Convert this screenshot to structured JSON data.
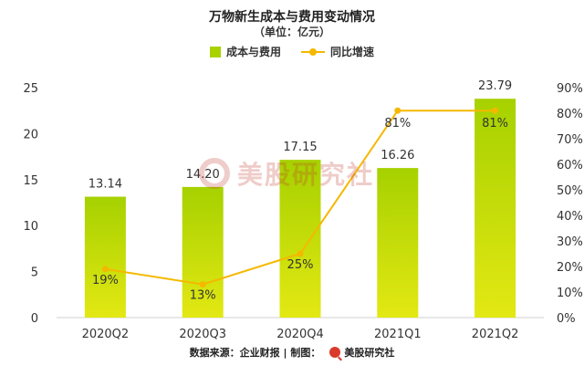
{
  "chart_data": {
    "type": "bar",
    "title": "万物新生成本与费用变动情况",
    "subtitle": "（单位：亿元）",
    "categories": [
      "2020Q2",
      "2020Q3",
      "2020Q4",
      "2021Q1",
      "2021Q2"
    ],
    "series": [
      {
        "name": "成本与费用",
        "type": "bar",
        "axis": "left",
        "values": [
          13.14,
          14.2,
          17.15,
          16.26,
          23.79
        ],
        "labels": [
          "13.14",
          "14.20",
          "17.15",
          "16.26",
          "23.79"
        ],
        "color": "#a9d200"
      },
      {
        "name": "同比增速",
        "type": "line",
        "axis": "right",
        "values": [
          19,
          13,
          25,
          81,
          81
        ],
        "labels": [
          "19%",
          "13%",
          "25%",
          "81%",
          "81%"
        ],
        "color": "#f5b800"
      }
    ],
    "y_left": {
      "min": 0,
      "max": 25,
      "ticks": [
        "0",
        "5",
        "10",
        "15",
        "20",
        "25"
      ]
    },
    "y_right": {
      "min": 0,
      "max": 90,
      "ticks": [
        "0%",
        "10%",
        "20%",
        "30%",
        "40%",
        "50%",
        "60%",
        "70%",
        "80%",
        "90%"
      ]
    },
    "grid": false,
    "legend_position": "top-center"
  },
  "footer": {
    "source": "数据来源：企业财报 | 制图：",
    "brand": "美股研究社"
  },
  "watermark": {
    "text": "美股研究社"
  }
}
